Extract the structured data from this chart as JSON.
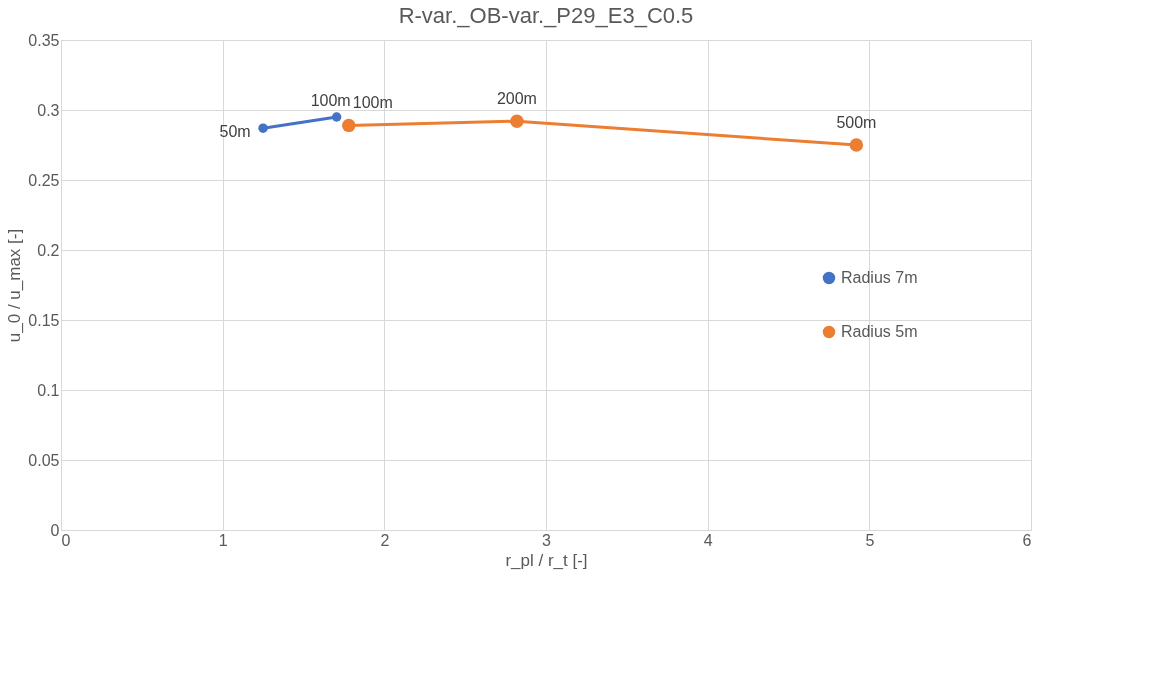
{
  "chart_data": {
    "type": "line",
    "title": "R-var._OB-var._P29_E3_C0.5",
    "xlabel": "r_pl / r_t  [-]",
    "ylabel": "u_0 / u_max  [-]",
    "series": [
      {
        "name": "Radius 7m",
        "color": "#4472c4",
        "x": [
          1.25,
          1.705
        ],
        "values": [
          0.287,
          0.295
        ]
      },
      {
        "name": "Radius 5m",
        "color": "#ed7d31",
        "x": [
          1.78,
          2.82,
          4.92
        ],
        "values": [
          0.289,
          0.292,
          0.275
        ]
      }
    ],
    "annotations": [
      {
        "text": "50m",
        "x": 1.25,
        "y": 0.287
      },
      {
        "text": "100m",
        "x": 1.705,
        "y": 0.295
      },
      {
        "text": "100m",
        "x": 1.78,
        "y": 0.289
      },
      {
        "text": "200m",
        "x": 2.82,
        "y": 0.292
      },
      {
        "text": "500m",
        "x": 4.92,
        "y": 0.275
      }
    ],
    "xlim": [
      0,
      6
    ],
    "xticks": [
      0,
      1,
      2,
      3,
      4,
      5,
      6
    ],
    "ylim": [
      0,
      0.35
    ],
    "yticks": [
      0,
      0.05,
      0.1,
      0.15,
      0.2,
      0.25,
      0.3,
      0.35
    ],
    "grid": true,
    "legend": "right",
    "marker": "circle",
    "line_style": "solid"
  }
}
